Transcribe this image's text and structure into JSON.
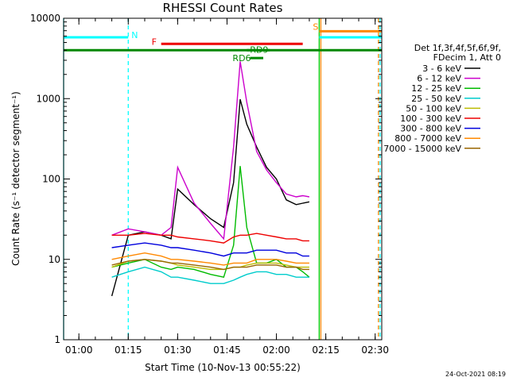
{
  "chart_data": {
    "type": "line",
    "title": "RHESSI Count Rates",
    "xlabel": "Start Time (10-Nov-13 00:55:22)",
    "ylabel": "Count Rate (s⁻¹ detector segment⁻¹)",
    "yscale": "log",
    "ylim": [
      1,
      10000
    ],
    "xlim": [
      "00:55:22",
      "02:32:00"
    ],
    "x_ticks": [
      "01:00",
      "01:15",
      "01:30",
      "01:45",
      "02:00",
      "02:15",
      "02:30"
    ],
    "y_ticks": [
      "1",
      "10",
      "100",
      "1000",
      "10000"
    ],
    "grid": false,
    "legend_position": "right",
    "legend_header": [
      "Det 1f,3f,4f,5f,6f,9f,",
      "FDecim 1, Att 0"
    ],
    "x_times": [
      "01:10:00",
      "01:15:00",
      "01:20:00",
      "01:25:00",
      "01:28:00",
      "01:30:00",
      "01:35:00",
      "01:40:00",
      "01:44:00",
      "01:47:00",
      "01:49:00",
      "01:51:00",
      "01:54:00",
      "01:57:00",
      "02:00:00",
      "02:03:00",
      "02:06:00",
      "02:08:00",
      "02:10:00"
    ],
    "series": [
      {
        "name": "3 - 6 keV",
        "color": "#000000",
        "values": [
          3.5,
          20,
          22,
          20,
          18,
          75,
          48,
          32,
          25,
          90,
          980,
          480,
          250,
          140,
          100,
          55,
          48,
          50,
          52
        ]
      },
      {
        "name": "6 - 12 keV",
        "color": "#cc00cc",
        "values": [
          20,
          24,
          22,
          20,
          25,
          140,
          50,
          28,
          18,
          250,
          2900,
          900,
          220,
          130,
          90,
          65,
          60,
          62,
          60
        ]
      },
      {
        "name": "12 - 25 keV",
        "color": "#00bb00",
        "values": [
          8,
          9,
          10,
          8,
          7.5,
          8,
          7.5,
          6.5,
          6,
          15,
          145,
          25,
          9,
          9,
          10,
          8,
          8,
          7,
          6
        ]
      },
      {
        "name": "25 - 50 keV",
        "color": "#00cccc",
        "values": [
          6,
          7,
          8,
          7,
          6,
          6,
          5.5,
          5,
          5,
          5.5,
          6,
          6.5,
          7,
          7,
          6.5,
          6.5,
          6,
          6,
          6
        ]
      },
      {
        "name": "50 - 100 keV",
        "color": "#bbbb00",
        "values": [
          8,
          9.5,
          10,
          9.5,
          9,
          8.5,
          8,
          7.5,
          7.5,
          8,
          8,
          8.5,
          9,
          9,
          9,
          8.5,
          8,
          8,
          8
        ]
      },
      {
        "name": "100 - 300 keV",
        "color": "#ee0000",
        "values": [
          20,
          20,
          21,
          20,
          20,
          19,
          18,
          17,
          16,
          19,
          20,
          20,
          21,
          20,
          19,
          18,
          18,
          17,
          17
        ]
      },
      {
        "name": "300 - 800 keV",
        "color": "#0000dd",
        "values": [
          14,
          15,
          16,
          15,
          14,
          14,
          13,
          12,
          11,
          12,
          12,
          12,
          13,
          13,
          13,
          12,
          12,
          11,
          11
        ]
      },
      {
        "name": "800 - 7000 keV",
        "color": "#ff8800",
        "values": [
          10,
          11,
          12,
          11,
          10,
          10,
          9.5,
          9,
          8.5,
          9,
          9,
          9,
          10,
          10,
          10,
          9.5,
          9,
          9,
          9
        ]
      },
      {
        "name": "7000 - 15000 keV",
        "color": "#996600",
        "values": [
          8.5,
          9.5,
          10,
          9.5,
          9,
          9,
          8.5,
          8,
          7.5,
          8,
          8,
          8,
          8.5,
          8.5,
          8.5,
          8,
          8,
          7.5,
          7.5
        ]
      }
    ],
    "bars": [
      {
        "label": "N",
        "color": "#00ffff",
        "y": 5800,
        "start": "00:55:22",
        "end": "01:15:00"
      },
      {
        "label": "F",
        "color": "#ee0000",
        "y": 4800,
        "start": "01:25:00",
        "end": "02:08:00"
      },
      {
        "label": "",
        "color": "#008800",
        "y": 4000,
        "start": "00:55:22",
        "end": "02:32:00"
      },
      {
        "label": "RD9",
        "color": "#008800",
        "y": 4000,
        "start": "01:51:00",
        "end": "01:58:00"
      },
      {
        "label": "RD6",
        "color": "#008800",
        "y": 3200,
        "start": "01:52:00",
        "end": "01:56:00"
      },
      {
        "label": "S",
        "color": "#ff8800",
        "y": 6900,
        "start": "02:13:00",
        "end": "02:32:00"
      },
      {
        "label": "",
        "color": "#00ffff",
        "y": 5800,
        "start": "02:13:00",
        "end": "02:32:00"
      }
    ],
    "markers": [
      {
        "time": "00:55:22",
        "color": "#00ffff",
        "style": "solid"
      },
      {
        "time": "01:15:00",
        "color": "#00ffff",
        "style": "dashed"
      },
      {
        "time": "02:13:00",
        "color": "#00cc00",
        "style": "solid"
      },
      {
        "time": "02:13:30",
        "color": "#ff8800",
        "style": "solid"
      },
      {
        "time": "02:31:00",
        "color": "#ff8800",
        "style": "dashed"
      },
      {
        "time": "02:31:30",
        "color": "#00ffff",
        "style": "dashed"
      }
    ]
  },
  "timestamp": "24-Oct-2021 08:19"
}
